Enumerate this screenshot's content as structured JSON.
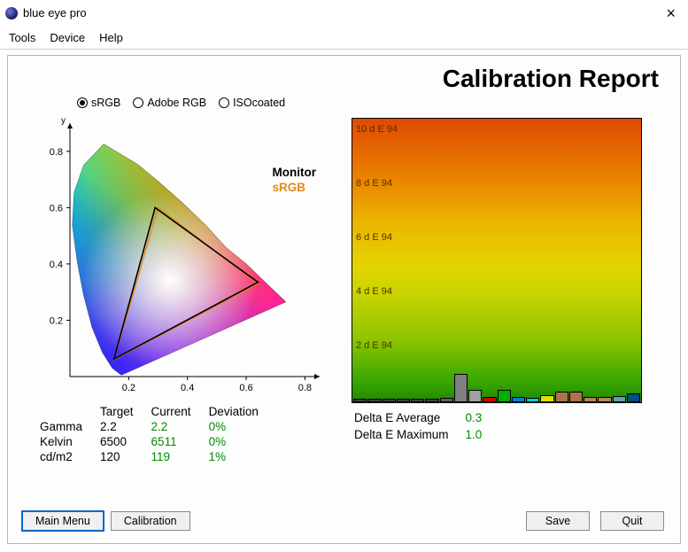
{
  "window": {
    "title": "blue eye pro",
    "close_label": "×"
  },
  "menu": {
    "tools": "Tools",
    "device": "Device",
    "help": "Help"
  },
  "report_title": "Calibration Report",
  "colorspaces": {
    "srgb": {
      "label": "sRGB",
      "checked": true
    },
    "adobergb": {
      "label": "Adobe RGB",
      "checked": false
    },
    "isocoated": {
      "label": "ISOcoated",
      "checked": false
    }
  },
  "gamut": {
    "axis_y_label": "y",
    "xlim": [
      0,
      0.85
    ],
    "ylim": [
      0,
      0.9
    ],
    "xticks": [
      0.2,
      0.4,
      0.6,
      0.8
    ],
    "yticks": [
      0.2,
      0.4,
      0.6,
      0.8
    ],
    "tick_fontsize": 11,
    "legend": {
      "monitor": "Monitor",
      "srgb": "sRGB",
      "srgb_color": "#e08a1a"
    },
    "spectral_locus": [
      [
        0.175,
        0.005
      ],
      [
        0.144,
        0.03
      ],
      [
        0.11,
        0.086
      ],
      [
        0.075,
        0.175
      ],
      [
        0.045,
        0.295
      ],
      [
        0.024,
        0.412
      ],
      [
        0.008,
        0.538
      ],
      [
        0.014,
        0.654
      ],
      [
        0.046,
        0.75
      ],
      [
        0.115,
        0.826
      ],
      [
        0.23,
        0.754
      ],
      [
        0.302,
        0.692
      ],
      [
        0.38,
        0.62
      ],
      [
        0.46,
        0.54
      ],
      [
        0.53,
        0.46
      ],
      [
        0.6,
        0.4
      ],
      [
        0.66,
        0.34
      ],
      [
        0.7,
        0.3
      ],
      [
        0.735,
        0.265
      ],
      [
        0.175,
        0.005
      ]
    ],
    "triangle_monitor": {
      "pts": [
        [
          0.15,
          0.062
        ],
        [
          0.29,
          0.6
        ],
        [
          0.64,
          0.335
        ]
      ],
      "stroke": "#000000",
      "width": 1.6
    },
    "triangle_srgb": {
      "pts": [
        [
          0.15,
          0.06
        ],
        [
          0.3,
          0.6
        ],
        [
          0.64,
          0.33
        ]
      ],
      "stroke": "#e08a1a",
      "width": 1.4
    }
  },
  "stats": {
    "headers": {
      "target": "Target",
      "current": "Current",
      "deviation": "Deviation"
    },
    "rows": [
      {
        "name": "Gamma",
        "target": "2.2",
        "current": "2.2",
        "deviation": "0%"
      },
      {
        "name": "Kelvin",
        "target": "6500",
        "current": "6511",
        "deviation": "0%"
      },
      {
        "name": "cd/m2",
        "target": "120",
        "current": "119",
        "deviation": "1%"
      }
    ],
    "current_color": "#008a00",
    "deviation_color": "#008a00"
  },
  "delta_e": {
    "grid_labels": [
      "10 d E 94",
      "8 d E 94",
      "6 d E 94",
      "4 d E 94",
      "2 d E 94"
    ],
    "grid_positions_pct": [
      2,
      21,
      40,
      59,
      78
    ],
    "bars": [
      {
        "h": 4,
        "c": "#404040"
      },
      {
        "h": 4,
        "c": "#404040"
      },
      {
        "h": 4,
        "c": "#404040"
      },
      {
        "h": 4,
        "c": "#404040"
      },
      {
        "h": 4,
        "c": "#404040"
      },
      {
        "h": 4,
        "c": "#404040"
      },
      {
        "h": 5,
        "c": "#606060"
      },
      {
        "h": 32,
        "c": "#808080"
      },
      {
        "h": 14,
        "c": "#a0a0a0"
      },
      {
        "h": 6,
        "c": "#d00000"
      },
      {
        "h": 14,
        "c": "#00b000"
      },
      {
        "h": 6,
        "c": "#0080e0"
      },
      {
        "h": 5,
        "c": "#00d0d0"
      },
      {
        "h": 8,
        "c": "#e0e000"
      },
      {
        "h": 12,
        "c": "#b07050"
      },
      {
        "h": 12,
        "c": "#b07050"
      },
      {
        "h": 6,
        "c": "#c08060"
      },
      {
        "h": 6,
        "c": "#c08060"
      },
      {
        "h": 7,
        "c": "#60a0b0"
      },
      {
        "h": 10,
        "c": "#005080"
      }
    ],
    "stats": {
      "avg_label": "Delta E Average",
      "avg_value": "0.3",
      "max_label": "Delta E Maximum",
      "max_value": "1.0",
      "value_color": "#008a00"
    }
  },
  "buttons": {
    "main_menu": "Main Menu",
    "calibration": "Calibration",
    "save": "Save",
    "quit": "Quit"
  }
}
